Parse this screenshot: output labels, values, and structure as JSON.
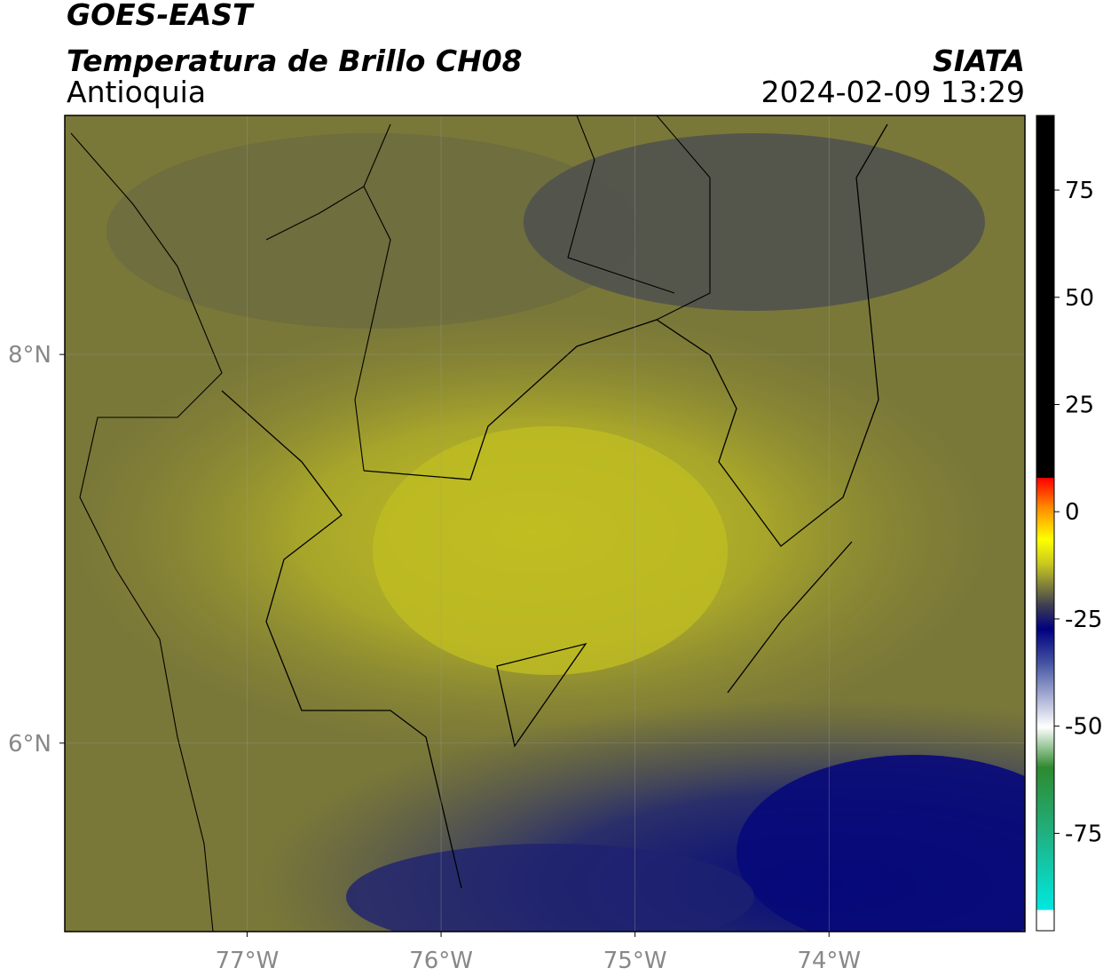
{
  "header": {
    "title": "GOES-EAST",
    "subtitle": "Temperatura de Brillo CH08",
    "region": "Antioquia",
    "source": "SIATA",
    "datetime": "2024-02-09 13:29"
  },
  "map": {
    "lonlim": [
      -77.94,
      -72.99
    ],
    "latlim": [
      5.03,
      9.23
    ],
    "lon_ticks": [
      {
        "value": -77,
        "label": "77°W"
      },
      {
        "value": -76,
        "label": "76°W"
      },
      {
        "value": -75,
        "label": "75°W"
      },
      {
        "value": -74,
        "label": "74°W"
      }
    ],
    "lat_ticks": [
      {
        "value": 8,
        "label": "8°N"
      },
      {
        "value": 6,
        "label": "6°N"
      }
    ]
  },
  "colorbar": {
    "lim": [
      -97.7,
      92.4
    ],
    "ticks": [
      75,
      50,
      25,
      0,
      -25,
      -50,
      -75
    ]
  }
}
